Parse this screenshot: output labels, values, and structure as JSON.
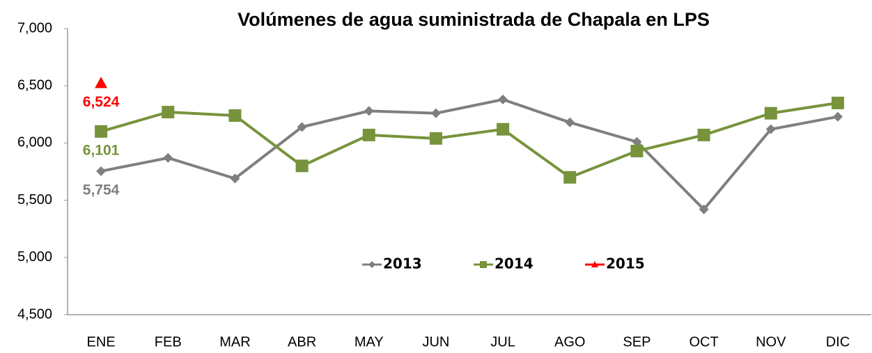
{
  "chart_data": {
    "type": "line",
    "title": "Volúmenes de agua suministrada de Chapala en LPS",
    "categories": [
      "ENE",
      "FEB",
      "MAR",
      "ABR",
      "MAY",
      "JUN",
      "JUL",
      "AGO",
      "SEP",
      "OCT",
      "NOV",
      "DIC"
    ],
    "series": [
      {
        "name": "2013",
        "color": "#7f7f7f",
        "marker": "diamond",
        "values": [
          5754,
          5870,
          5690,
          6140,
          6280,
          6260,
          6380,
          6180,
          6010,
          5420,
          6120,
          6230
        ],
        "value_labels": [
          "5,754",
          null,
          null,
          null,
          null,
          null,
          null,
          null,
          null,
          null,
          null,
          null
        ]
      },
      {
        "name": "2014",
        "color": "#77933c",
        "marker": "square",
        "values": [
          6101,
          6270,
          6240,
          5800,
          6070,
          6040,
          6120,
          5700,
          5930,
          6070,
          6260,
          6350
        ],
        "value_labels": [
          "6,101",
          null,
          null,
          null,
          null,
          null,
          null,
          null,
          null,
          null,
          null,
          null
        ]
      },
      {
        "name": "2015",
        "color": "#ff0000",
        "marker": "triangle",
        "values": [
          6524,
          null,
          null,
          null,
          null,
          null,
          null,
          null,
          null,
          null,
          null,
          null
        ],
        "value_labels": [
          "6,524",
          null,
          null,
          null,
          null,
          null,
          null,
          null,
          null,
          null,
          null,
          null
        ]
      }
    ],
    "ylim": [
      4500,
      7000
    ],
    "yticks": [
      {
        "value": 4500,
        "label": "4,500"
      },
      {
        "value": 5000,
        "label": "5,000"
      },
      {
        "value": 5500,
        "label": "5,500"
      },
      {
        "value": 6000,
        "label": "6,000"
      },
      {
        "value": 6500,
        "label": "6,500"
      },
      {
        "value": 7000,
        "label": "7,000"
      }
    ],
    "grid": false,
    "legend": "center"
  }
}
